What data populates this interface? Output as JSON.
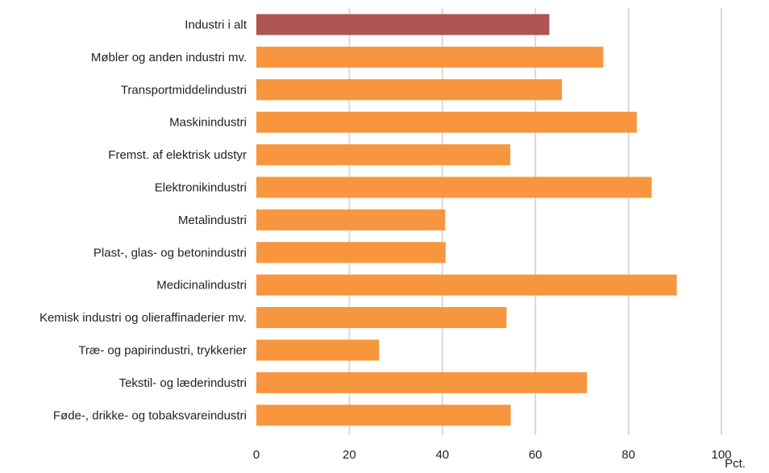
{
  "chart_data": {
    "type": "bar",
    "orientation": "horizontal",
    "categories": [
      "Industri i alt",
      "Møbler og anden industri mv.",
      "Transportmiddelindustri",
      "Maskinindustri",
      "Fremst. af elektrisk udstyr",
      "Elektronikindustri",
      "Metalindustri",
      "Plast-, glas- og betonindustri",
      "Medicinalindustri",
      "Kemisk industri og olieraffinaderier mv.",
      "Træ- og papirindustri, trykkerier",
      "Tekstil- og læderindustri",
      "Føde-, drikke- og tobaksvareindustri"
    ],
    "values": [
      63,
      74.6,
      65.7,
      81.8,
      54.6,
      85,
      40.6,
      40.7,
      90.4,
      53.8,
      26.4,
      71.1,
      54.7
    ],
    "bar_colors": [
      "#b05454",
      "#f7963e",
      "#f7963e",
      "#f7963e",
      "#f7963e",
      "#f7963e",
      "#f7963e",
      "#f7963e",
      "#f7963e",
      "#f7963e",
      "#f7963e",
      "#f7963e",
      "#f7963e"
    ],
    "xticks": [
      0,
      20,
      40,
      60,
      80,
      100
    ],
    "xlim": [
      0,
      100
    ],
    "unit": "Pct.",
    "grid": true
  }
}
